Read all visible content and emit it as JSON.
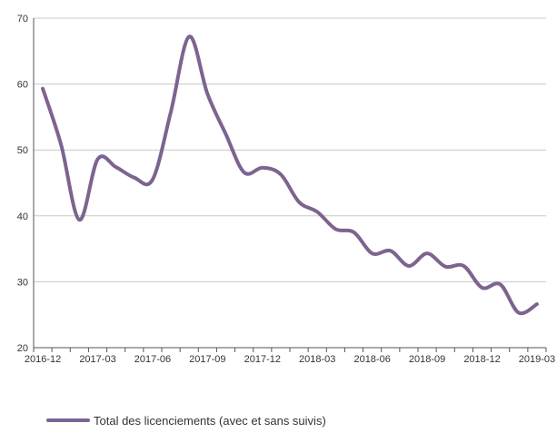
{
  "colors": {
    "series": "#7d6490",
    "grid": "#c8c8c8",
    "axis": "#555555",
    "text": "#333333"
  },
  "chart_data": {
    "type": "line",
    "title": "",
    "xlabel": "",
    "ylabel": "",
    "ylim": [
      20,
      70
    ],
    "y_ticks": [
      20,
      30,
      40,
      50,
      60,
      70
    ],
    "grid": true,
    "legend_position": "bottom-left",
    "x_tick_labels": [
      "2016-12",
      "2017-03",
      "2017-06",
      "2017-09",
      "2017-12",
      "2018-03",
      "2018-06",
      "2018-09",
      "2018-12",
      "2019-03"
    ],
    "x": [
      "2016-12",
      "2017-01",
      "2017-02",
      "2017-03",
      "2017-04",
      "2017-05",
      "2017-06",
      "2017-07",
      "2017-08",
      "2017-09",
      "2017-10",
      "2017-11",
      "2017-12",
      "2018-01",
      "2018-02",
      "2018-03",
      "2018-04",
      "2018-05",
      "2018-06",
      "2018-07",
      "2018-08",
      "2018-09",
      "2018-10",
      "2018-11",
      "2018-12",
      "2019-01",
      "2019-02",
      "2019-03"
    ],
    "series": [
      {
        "name": "Total des licenciements (avec et sans suivis)",
        "values": [
          59.3,
          50.8,
          39.4,
          48.6,
          47.4,
          45.8,
          45.5,
          55.8,
          67.2,
          58.5,
          52.4,
          46.6,
          47.3,
          46.3,
          42.1,
          40.6,
          38.0,
          37.5,
          34.3,
          34.7,
          32.4,
          34.3,
          32.3,
          32.4,
          29.1,
          29.6,
          25.3,
          26.6
        ]
      }
    ]
  }
}
